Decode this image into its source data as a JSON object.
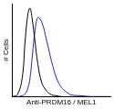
{
  "chart_data": {
    "type": "line",
    "x": [
      0,
      5,
      10,
      13,
      16,
      18,
      20,
      23,
      26,
      30,
      35,
      40,
      45,
      50,
      55,
      60,
      70,
      80,
      90,
      100
    ],
    "series": [
      {
        "color": "#000000",
        "values": [
          0,
          2,
          20,
          60,
          90,
          95,
          85,
          60,
          35,
          15,
          6,
          2,
          1,
          0,
          0,
          0,
          0,
          0,
          0,
          0
        ]
      },
      {
        "color": "#2222cc",
        "values": [
          0,
          0,
          1,
          3,
          10,
          20,
          40,
          70,
          85,
          80,
          60,
          38,
          20,
          10,
          5,
          2,
          1,
          0,
          0,
          0
        ]
      }
    ],
    "x_label": "Anti-PRDM16 / MEL1",
    "y_label": "# Cells",
    "xlim": [
      0,
      100
    ],
    "ylim": [
      0,
      100
    ],
    "tick_labels": false,
    "grid": false
  }
}
